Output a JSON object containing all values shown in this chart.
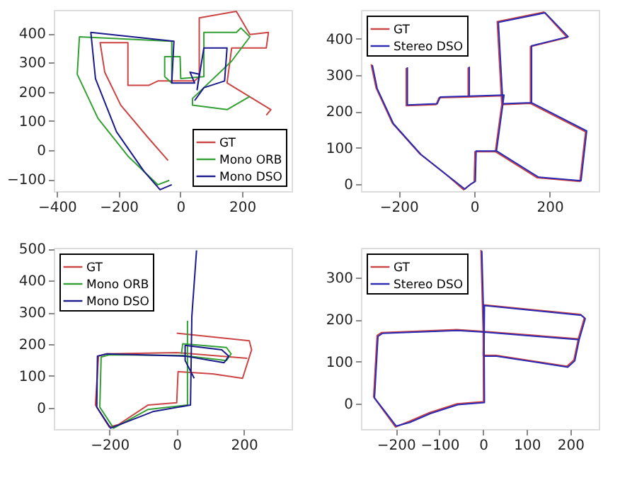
{
  "chart_data": [
    {
      "type": "line",
      "xlim": [
        -410,
        360
      ],
      "ylim": [
        -140,
        480
      ],
      "xticks": [
        -400,
        -200,
        0,
        200
      ],
      "yticks": [
        -100,
        0,
        100,
        200,
        300,
        400
      ],
      "legend": "bottom right",
      "line_style": "solid",
      "series": [
        {
          "name": "GT",
          "color": "#cc4444",
          "x": [
            -40,
            -103,
            -193,
            -245,
            -260,
            -170,
            -170,
            -103,
            -73,
            46,
            61,
            61,
            181,
            225,
            285,
            278,
            166,
            151,
            293,
            278
          ],
          "values": [
            -35,
            41,
            154,
            267,
            368,
            368,
            222,
            222,
            237,
            237,
            252,
            453,
            475,
            396,
            403,
            350,
            350,
            230,
            139,
            120
          ]
        },
        {
          "name": "Mono ORB",
          "color": "#33a033",
          "x": [
            -36,
            -73,
            -170,
            -267,
            -334,
            -327,
            -28,
            -28,
            -51,
            -51,
            -1,
            1,
            76,
            76,
            181,
            196,
            225,
            166,
            39,
            39,
            151,
            225
          ],
          "values": [
            -103,
            -118,
            -20,
            109,
            260,
            388,
            373,
            230,
            252,
            320,
            320,
            245,
            252,
            403,
            403,
            418,
            388,
            305,
            177,
            154,
            139,
            184
          ]
        },
        {
          "name": "Mono DSO",
          "color": "#1a1a8c",
          "x": [
            -28,
            -66,
            -118,
            -207,
            -275,
            -290,
            -21,
            -28,
            46,
            31,
            61,
            54,
            76,
            151,
            143,
            76,
            46
          ],
          "values": [
            -118,
            -135,
            -72,
            63,
            245,
            403,
            373,
            230,
            230,
            267,
            260,
            207,
            350,
            350,
            237,
            214,
            170
          ]
        }
      ]
    },
    {
      "type": "line",
      "xlim": [
        -300,
        330
      ],
      "ylim": [
        -20,
        480
      ],
      "xticks": [
        -200,
        0,
        200
      ],
      "yticks": [
        0,
        100,
        200,
        300,
        400
      ],
      "legend": "top left",
      "line_style": "solid",
      "series": [
        {
          "name": "GT",
          "color": "#cc4444",
          "x": [
            -273,
            -260,
            -217,
            -144,
            -71,
            -28,
            -10,
            0,
            2,
            56,
            167,
            280,
            295,
            149,
            149,
            246,
            185,
            61,
            73,
            149,
            73,
            56,
            73,
            76,
            -16,
            -16,
            -16,
            -93,
            -101,
            -180,
            -180
          ],
          "values": [
            330,
            265,
            168,
            83,
            23,
            -16,
            -1,
            5,
            89,
            89,
            17,
            7,
            144,
            222,
            379,
            404,
            474,
            448,
            219,
            222,
            219,
            89,
            219,
            243,
            240,
            320,
            240,
            238,
            219,
            216,
            320
          ]
        },
        {
          "name": "Stereo DSO",
          "color": "#2a2ab4",
          "x": [
            -270,
            -257,
            -214,
            -141,
            -68,
            -25,
            -7,
            3,
            5,
            59,
            170,
            283,
            298,
            152,
            152,
            249,
            188,
            64,
            76,
            152,
            76,
            59,
            76,
            79,
            -13,
            -13,
            -13,
            -90,
            -98,
            -177,
            -177
          ],
          "values": [
            328,
            263,
            166,
            81,
            21,
            -14,
            1,
            7,
            91,
            91,
            19,
            9,
            146,
            224,
            381,
            406,
            472,
            446,
            221,
            224,
            221,
            91,
            221,
            245,
            242,
            322,
            242,
            240,
            221,
            218,
            322
          ]
        }
      ]
    },
    {
      "type": "line",
      "xlim": [
        -366,
        342
      ],
      "ylim": [
        -68,
        503
      ],
      "xticks": [
        -200,
        0,
        200
      ],
      "yticks": [
        0,
        100,
        200,
        300,
        400,
        500
      ],
      "legend": "top left",
      "line_style": "solid",
      "series": [
        {
          "name": "GT",
          "color": "#cc4444",
          "x": [
            0,
            216,
            223,
            196,
            107,
            4,
            0,
            -85,
            -174,
            -201,
            -242,
            -233,
            -208,
            0,
            210
          ],
          "values": [
            234,
            210,
            182,
            92,
            106,
            113,
            15,
            8,
            -54,
            -61,
            8,
            162,
            169,
            173,
            155
          ]
        },
        {
          "name": "Mono ORB",
          "color": "#33a033",
          "x": [
            32,
            32,
            -85,
            -188,
            -229,
            -225,
            -201,
            18,
            148,
            162,
            148,
            18,
            14
          ],
          "values": [
            273,
            8,
            -6,
            -65,
            1,
            159,
            166,
            164,
            148,
            169,
            189,
            201,
            169
          ]
        },
        {
          "name": "Mono DSO",
          "color": "#1a1a8c",
          "x": [
            59,
            45,
            41,
            -71,
            -197,
            -238,
            -236,
            -208,
            25,
            141,
            155,
            134,
            25,
            25,
            52
          ],
          "values": [
            495,
            287,
            8,
            -13,
            -65,
            1,
            162,
            169,
            162,
            141,
            162,
            182,
            196,
            148,
            92
          ]
        }
      ]
    },
    {
      "type": "line",
      "xlim": [
        -280,
        265
      ],
      "ylim": [
        -60,
        370
      ],
      "xticks": [
        -200,
        -100,
        0,
        100,
        200
      ],
      "yticks": [
        0,
        100,
        200,
        300
      ],
      "legend": "top left",
      "line_style": "solid",
      "series": [
        {
          "name": "GT",
          "color": "#cc4444",
          "x": [
            0,
            1,
            -60,
            -123,
            -170,
            -201,
            -251,
            -243,
            -233,
            -60,
            0,
            218,
            232,
            223,
            1,
            0,
            29,
            192,
            208,
            218,
            0,
            -5
          ],
          "values": [
            172,
            5,
            0,
            -21,
            -42,
            -55,
            16,
            162,
            169,
            176,
            172,
            154,
            204,
            212,
            235,
            115,
            115,
            89,
            104,
            154,
            172,
            365
          ]
        },
        {
          "name": "Stereo DSO",
          "color": "#2a2ab4",
          "x": [
            2,
            3,
            -58,
            -121,
            -168,
            -199,
            -249,
            -241,
            -231,
            -58,
            2,
            220,
            234,
            225,
            3,
            2,
            31,
            194,
            210,
            220,
            2,
            -3
          ],
          "values": [
            170,
            3,
            -2,
            -23,
            -44,
            -53,
            14,
            160,
            167,
            174,
            170,
            152,
            202,
            210,
            233,
            113,
            113,
            87,
            102,
            152,
            170,
            363
          ]
        }
      ]
    }
  ]
}
